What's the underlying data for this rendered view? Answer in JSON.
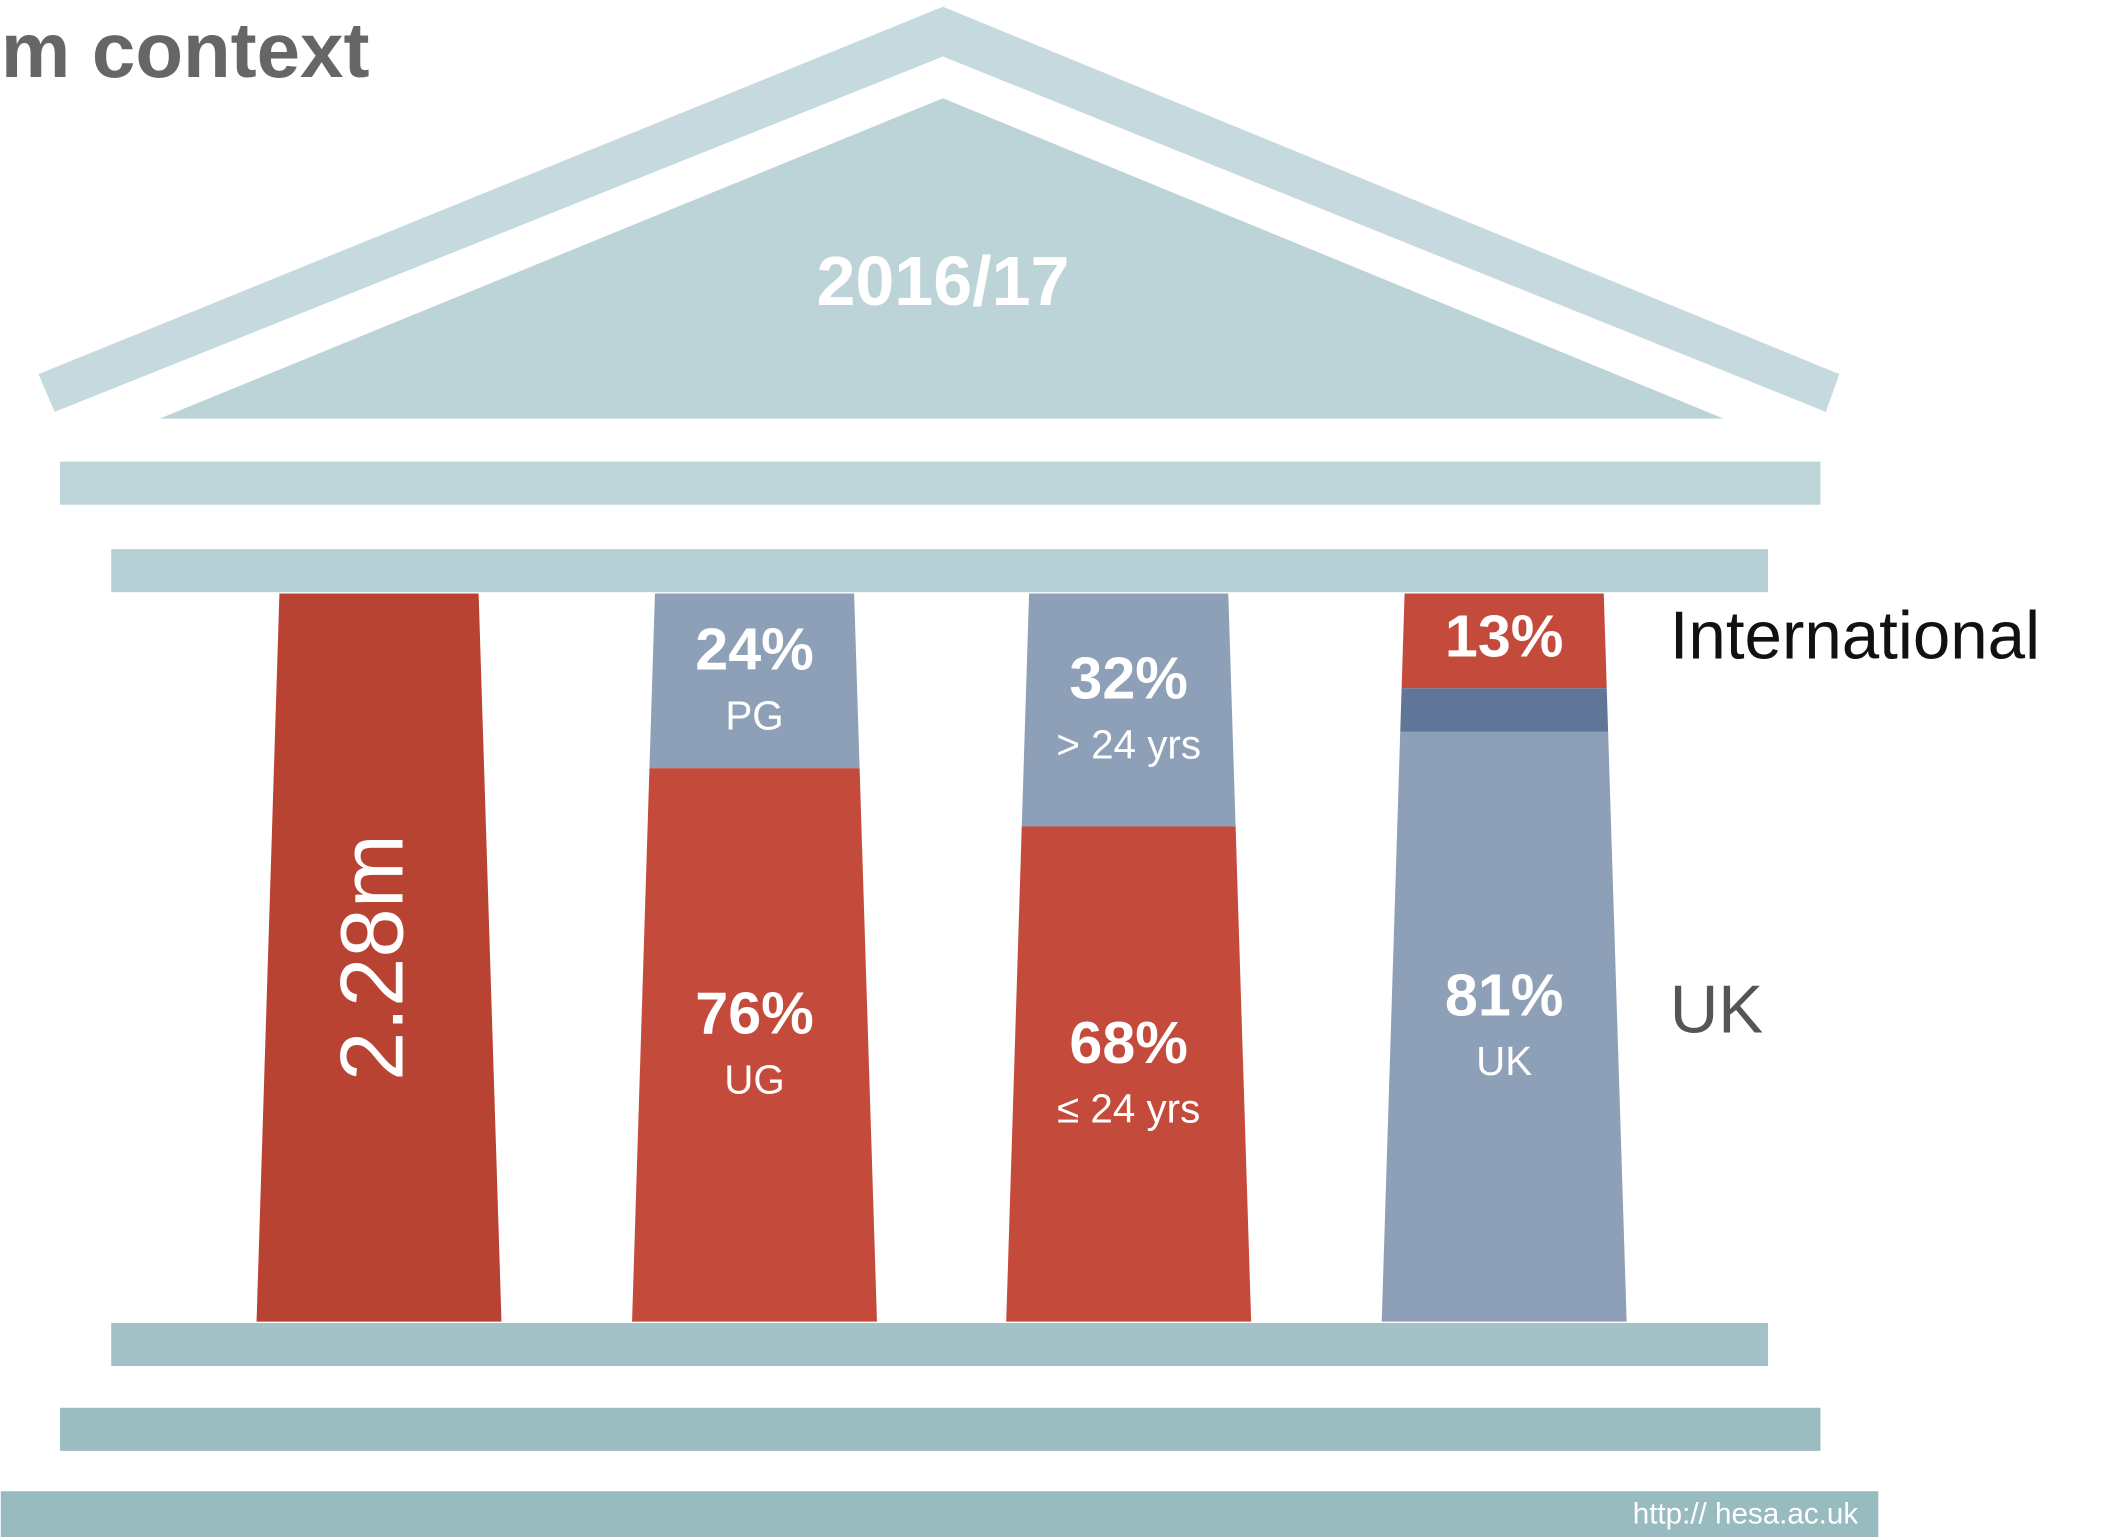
{
  "title": "m context",
  "year": "2016/17",
  "pillars": [
    {
      "segments": [
        {
          "value_label": "2.28m",
          "color": "#b84332"
        }
      ]
    },
    {
      "segments": [
        {
          "value": 24,
          "value_label": "24%",
          "label": "PG",
          "color": "#8ea0b7"
        },
        {
          "value": 76,
          "value_label": "76%",
          "label": "UG",
          "color": "#c44b3b"
        }
      ]
    },
    {
      "segments": [
        {
          "value": 32,
          "value_label": "32%",
          "label": "> 24 yrs",
          "color": "#8ea0b7"
        },
        {
          "value": 68,
          "value_label": "68%",
          "label": "≤ 24 yrs",
          "color": "#c44b3b"
        }
      ]
    },
    {
      "segments": [
        {
          "value": 13,
          "value_label": "13%",
          "color": "#c44b3b"
        },
        {
          "value": 6,
          "color": "#5f7698"
        },
        {
          "value": 81,
          "value_label": "81%",
          "label": "UK",
          "color": "#8ea0b7"
        }
      ]
    }
  ],
  "side_labels": [
    "International",
    "UK"
  ],
  "footer": "http:// hesa.ac.uk"
}
